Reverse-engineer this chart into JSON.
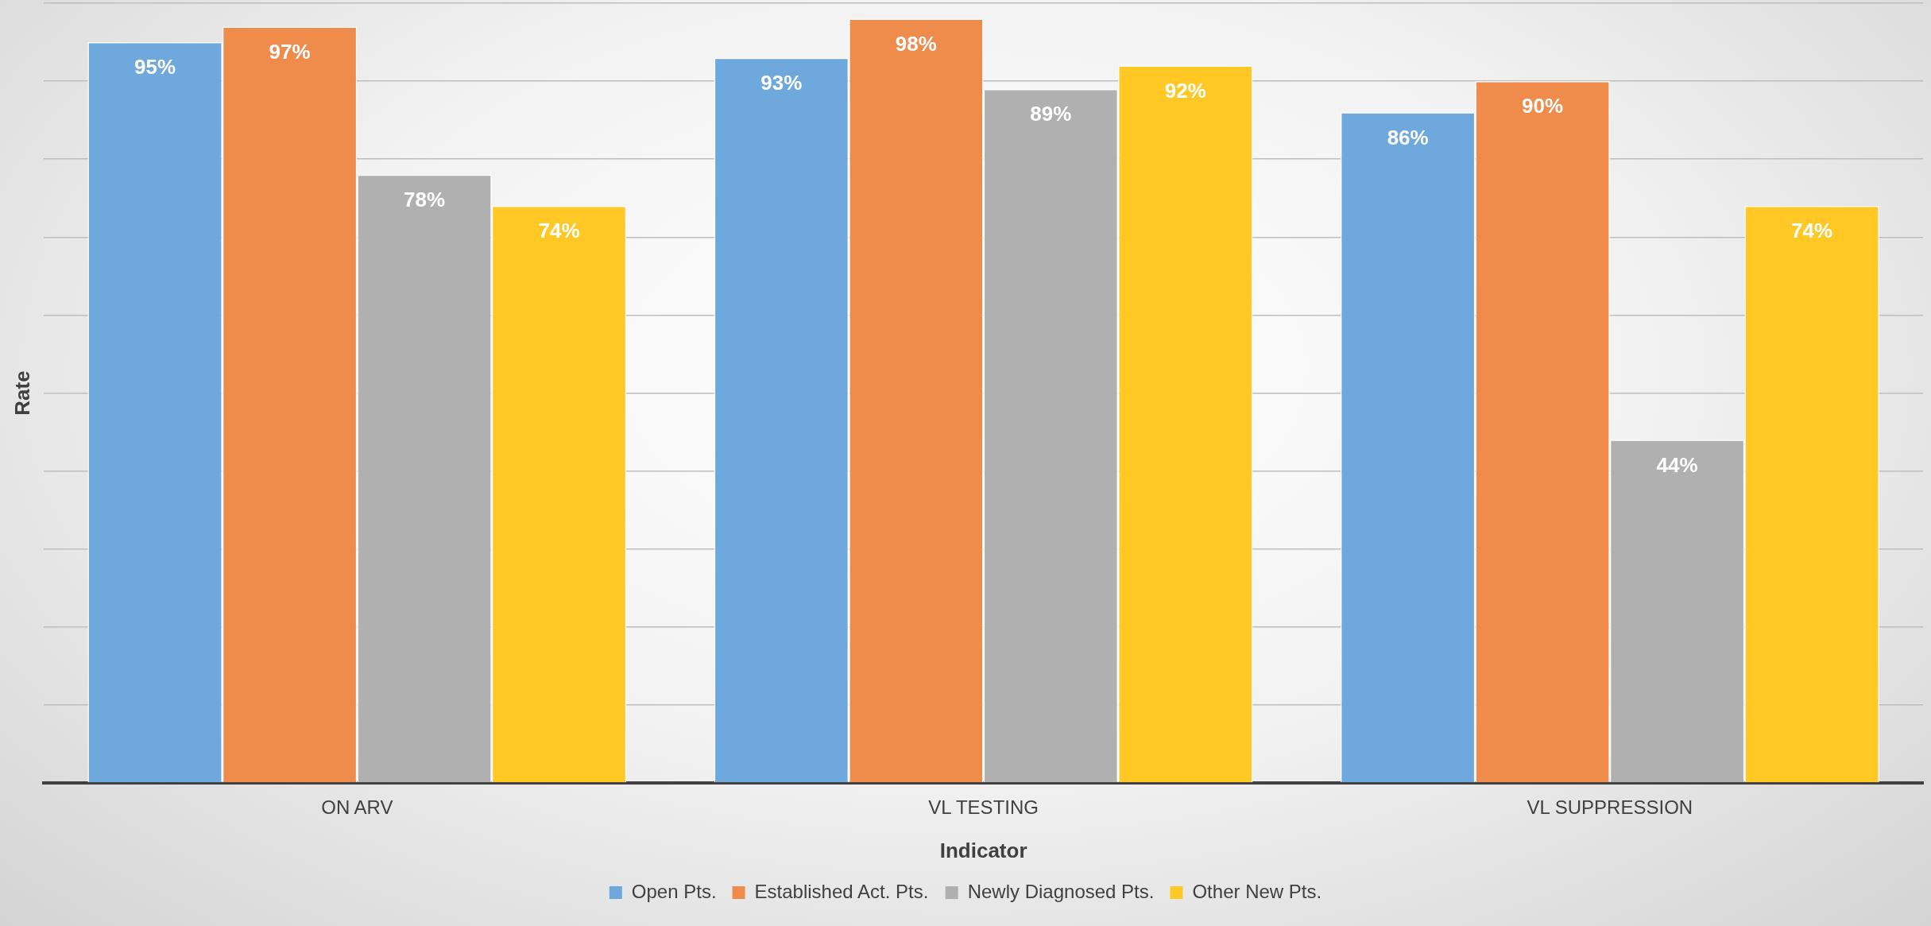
{
  "chart_data": {
    "type": "bar",
    "xlabel": "Indicator",
    "ylabel": "Rate",
    "categories": [
      "ON ARV",
      "VL TESTING",
      "VL SUPPRESSION"
    ],
    "series": [
      {
        "name": "Open Pts.",
        "color": "#6fa8dc",
        "values": [
          95,
          93,
          86
        ],
        "value_labels": [
          "95%",
          "93%",
          "86%"
        ]
      },
      {
        "name": "Established Act. Pts.",
        "color": "#ef8c4c",
        "values": [
          97,
          98,
          90
        ],
        "value_labels": [
          "97%",
          "98%",
          "90%"
        ]
      },
      {
        "name": "Newly Diagnosed Pts.",
        "color": "#b0b0b0",
        "values": [
          78,
          89,
          44
        ],
        "value_labels": [
          "78%",
          "89%",
          "44%"
        ]
      },
      {
        "name": "Other New Pts.",
        "color": "#ffc825",
        "values": [
          74,
          92,
          74
        ],
        "value_labels": [
          "74%",
          "92%",
          "74%"
        ]
      }
    ],
    "ylim": [
      0,
      100
    ],
    "yticks": [
      {
        "value": 0,
        "label": null
      },
      {
        "value": 10,
        "label": null
      },
      {
        "value": 20,
        "label": null
      },
      {
        "value": 30,
        "label": null
      },
      {
        "value": 40,
        "label": null
      },
      {
        "value": 50,
        "label": null
      },
      {
        "value": 60,
        "label": null
      },
      {
        "value": 70,
        "label": null
      },
      {
        "value": 80,
        "label": null
      },
      {
        "value": 90,
        "label": null
      },
      {
        "value": 100,
        "label": null
      }
    ],
    "grid": "y",
    "tick_labels": "x",
    "legend": "bottom"
  }
}
